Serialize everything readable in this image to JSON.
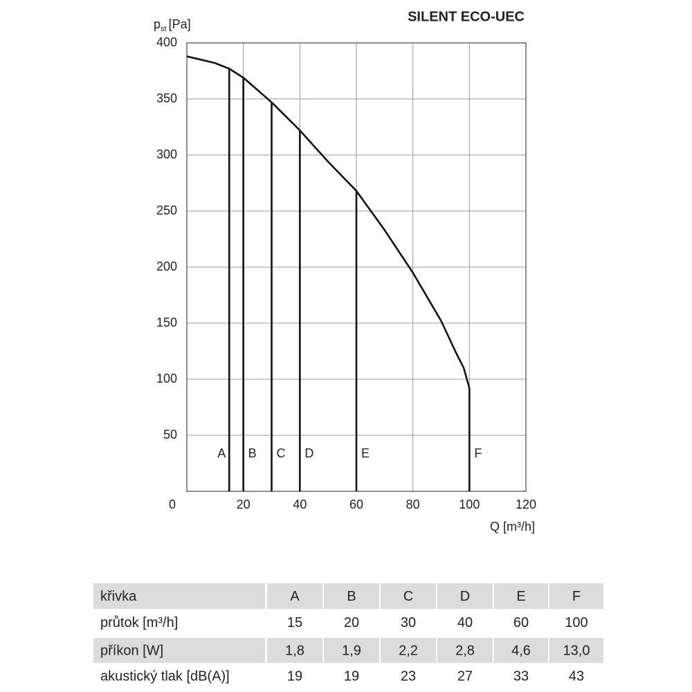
{
  "chart_data": {
    "type": "line",
    "title": "SILENT ECO-UEC",
    "y_label": {
      "symbol": "p",
      "subscript": "st",
      "unit": "[Pa]"
    },
    "x_label": "Q [m³/h]",
    "xlim": [
      0,
      120
    ],
    "xticks": [
      0,
      20,
      40,
      60,
      80,
      100,
      120
    ],
    "ylim": [
      0,
      400
    ],
    "yticks": [
      50,
      100,
      150,
      200,
      250,
      300,
      350,
      400
    ],
    "grid": true,
    "color": "#111111",
    "x": [
      0,
      10,
      15,
      20,
      25,
      30,
      40,
      50,
      60,
      70,
      80,
      90,
      95,
      98,
      100
    ],
    "values": [
      388,
      382,
      377,
      369,
      358,
      347,
      322,
      294,
      268,
      233,
      195,
      152,
      125,
      110,
      92
    ],
    "curves": [
      {
        "name": "A",
        "x": 15,
        "top": 377
      },
      {
        "name": "B",
        "x": 20,
        "top": 369
      },
      {
        "name": "C",
        "x": 30,
        "top": 347
      },
      {
        "name": "D",
        "x": 40,
        "top": 322
      },
      {
        "name": "E",
        "x": 60,
        "top": 268
      },
      {
        "name": "F",
        "x": 100,
        "top": 92
      }
    ]
  },
  "table": {
    "rows": [
      [
        "křivka",
        "A",
        "B",
        "C",
        "D",
        "E",
        "F"
      ],
      [
        "průtok [m³/h]",
        "15",
        "20",
        "30",
        "40",
        "60",
        "100"
      ],
      [
        "příkon [W]",
        "1,8",
        "1,9",
        "2,2",
        "2,8",
        "4,6",
        "13,0"
      ],
      [
        "akustický tlak [dB(A)]",
        "19",
        "19",
        "23",
        "27",
        "33",
        "43"
      ]
    ]
  }
}
